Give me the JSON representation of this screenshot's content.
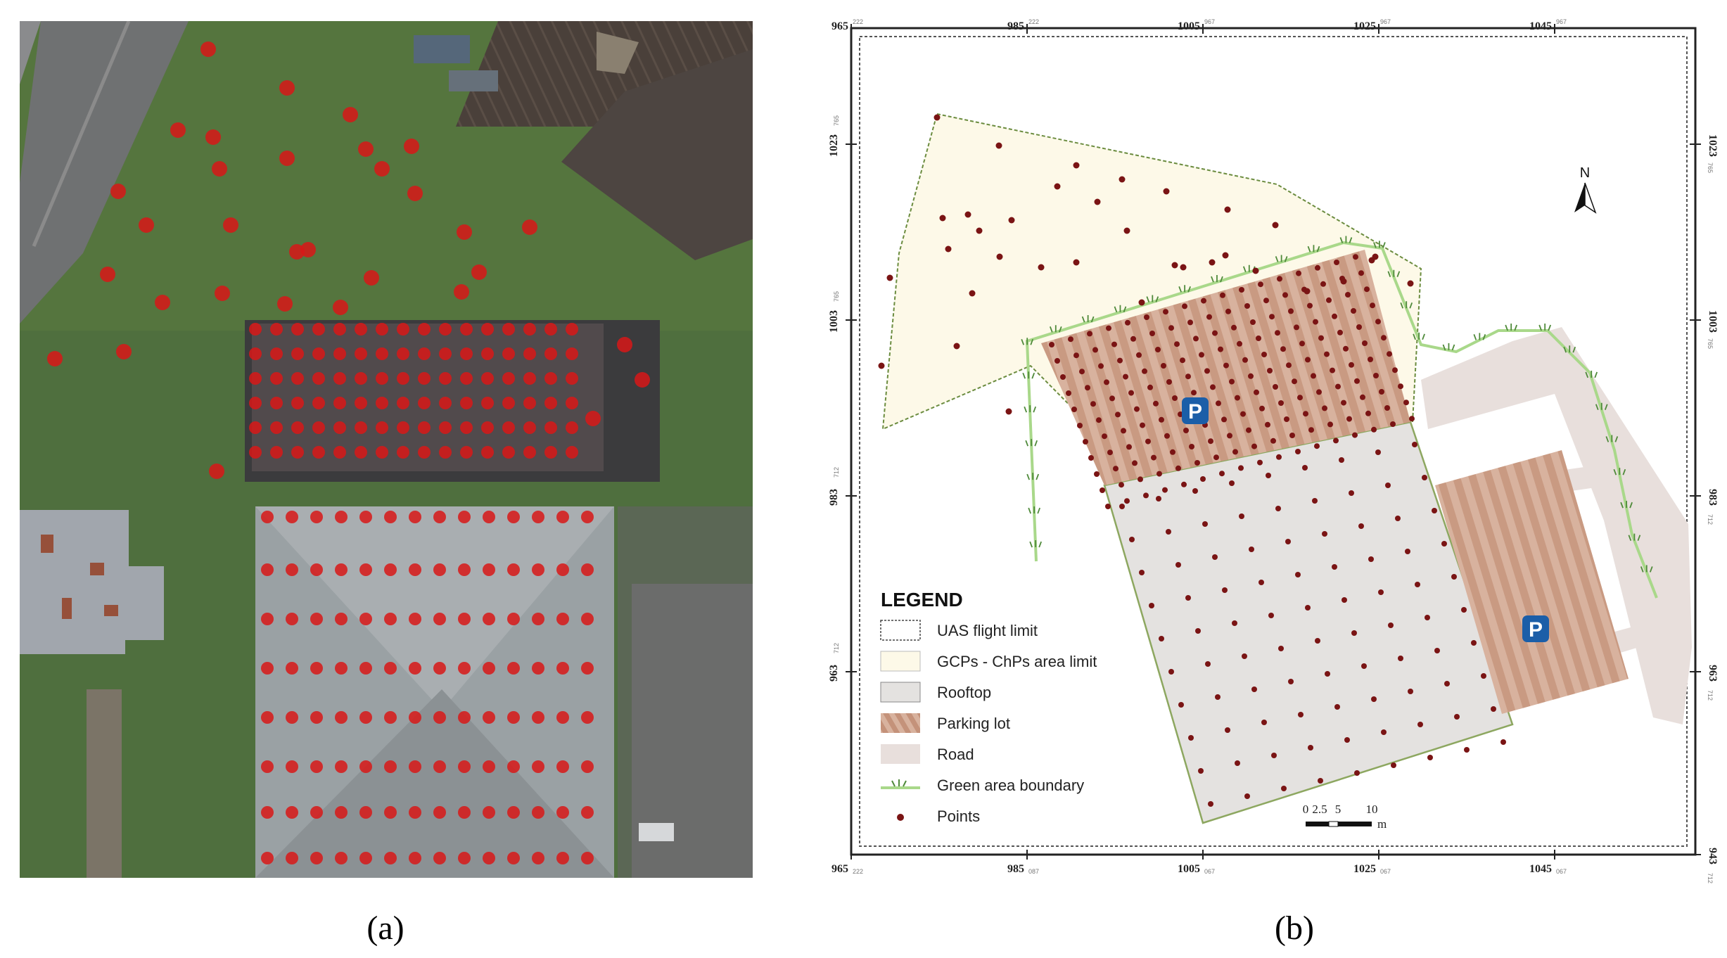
{
  "captions": {
    "a": "(a)",
    "b": "(b)"
  },
  "map": {
    "north_label": "N",
    "top_ticks": [
      "965",
      "985",
      "1005",
      "1025",
      "1045"
    ],
    "top_tick_sup": [
      "222",
      "222",
      "967",
      "967",
      "967"
    ],
    "bottom_ticks": [
      "965",
      "985",
      "1005",
      "1025",
      "1045"
    ],
    "bottom_tick_sup": [
      "222",
      "087",
      "067",
      "067",
      "067"
    ],
    "left_ticks": [
      "1023",
      "1003",
      "983",
      "963"
    ],
    "left_tick_sup": [
      "765",
      "765",
      "712",
      "712"
    ],
    "right_ticks": [
      "1023",
      "1003",
      "983",
      "963",
      "943"
    ],
    "right_tick_sup": [
      "765",
      "765",
      "712",
      "712",
      "712"
    ],
    "parking_symbol": "P",
    "legend": {
      "title": "LEGEND",
      "items": [
        {
          "label": "UAS flight limit",
          "symbol": "dashed-box"
        },
        {
          "label": "GCPs - ChPs area limit",
          "symbol": "cream-box"
        },
        {
          "label": "Rooftop",
          "symbol": "gray-box"
        },
        {
          "label": "Parking lot",
          "symbol": "striped-box"
        },
        {
          "label": "Road",
          "symbol": "road-box"
        },
        {
          "label": "Green area boundary",
          "symbol": "grass-line"
        },
        {
          "label": "Points",
          "symbol": "dot"
        }
      ]
    },
    "scalebar": {
      "labels": [
        "0",
        "2.5",
        "5",
        "10"
      ],
      "unit": "m"
    },
    "colors": {
      "gcp_area": "#fdf9e8",
      "rooftop": "#e4e2e0",
      "parking_a": "#c99a82",
      "parking_b": "#d8b29e",
      "road": "#e8dfdc",
      "green_line": "#a9d88a",
      "point": "#7a1414",
      "marker_red": "#d81818"
    }
  }
}
